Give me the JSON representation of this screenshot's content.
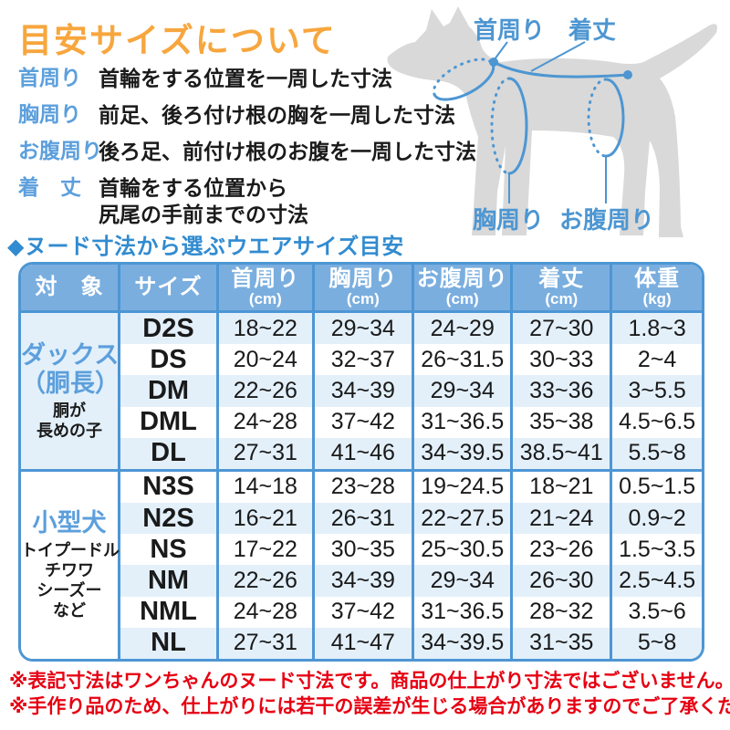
{
  "page": {
    "title": "目安サイズについて",
    "section_title": "◆ヌード寸法から選ぶウエアサイズ目安"
  },
  "definitions": [
    {
      "term": "首周り",
      "desc_lines": [
        "首輪をする位置を一周した寸法"
      ]
    },
    {
      "term": "胸周り",
      "desc_lines": [
        "前足、後ろ付け根の胸を一周した寸法"
      ]
    },
    {
      "term": "お腹周り",
      "desc_lines": [
        "後ろ足、前付け根のお腹を一周した寸法"
      ]
    },
    {
      "term": "着　丈",
      "desc_lines": [
        "首輪をする位置から",
        "尻尾の手前までの寸法"
      ]
    }
  ],
  "diagram": {
    "labels": {
      "neck": "首周り",
      "length": "着丈",
      "chest": "胸周り",
      "belly": "お腹周り"
    }
  },
  "table": {
    "headers": [
      {
        "label": "対　象",
        "unit": ""
      },
      {
        "label": "サイズ",
        "unit": ""
      },
      {
        "label": "首周り",
        "unit": "(cm)"
      },
      {
        "label": "胸周り",
        "unit": "(cm)"
      },
      {
        "label": "お腹周り",
        "unit": "(cm)"
      },
      {
        "label": "着丈",
        "unit": "(cm)"
      },
      {
        "label": "体重",
        "unit": "(kg)"
      }
    ],
    "groups": [
      {
        "name_lines": [
          "ダックス",
          "（胴長）"
        ],
        "note_lines": [
          "胴が",
          "長めの子"
        ],
        "rows": [
          {
            "size": "D2S",
            "neck": "18~22",
            "chest": "29~34",
            "belly": "24~29",
            "length": "27~30",
            "weight": "1.8~3"
          },
          {
            "size": "DS",
            "neck": "20~24",
            "chest": "32~37",
            "belly": "26~31.5",
            "length": "30~33",
            "weight": "2~4"
          },
          {
            "size": "DM",
            "neck": "22~26",
            "chest": "34~39",
            "belly": "29~34",
            "length": "33~36",
            "weight": "3~5.5"
          },
          {
            "size": "DML",
            "neck": "24~28",
            "chest": "37~42",
            "belly": "31~36.5",
            "length": "35~38",
            "weight": "4.5~6.5"
          },
          {
            "size": "DL",
            "neck": "27~31",
            "chest": "41~46",
            "belly": "34~39.5",
            "length": "38.5~41",
            "weight": "5.5~8"
          }
        ]
      },
      {
        "name_lines": [
          "小型犬"
        ],
        "note_lines": [
          "トイプードル",
          "チワワ",
          "シーズー",
          "など"
        ],
        "rows": [
          {
            "size": "N3S",
            "neck": "14~18",
            "chest": "23~28",
            "belly": "19~24.5",
            "length": "18~21",
            "weight": "0.5~1.5"
          },
          {
            "size": "N2S",
            "neck": "16~21",
            "chest": "26~31",
            "belly": "22~27.5",
            "length": "21~24",
            "weight": "0.9~2"
          },
          {
            "size": "NS",
            "neck": "17~22",
            "chest": "30~35",
            "belly": "25~30.5",
            "length": "23~26",
            "weight": "1.5~3.5"
          },
          {
            "size": "NM",
            "neck": "22~26",
            "chest": "34~39",
            "belly": "29~34",
            "length": "26~30",
            "weight": "2.5~4.5"
          },
          {
            "size": "NML",
            "neck": "24~28",
            "chest": "37~42",
            "belly": "31~36.5",
            "length": "28~32",
            "weight": "3.5~6"
          },
          {
            "size": "NL",
            "neck": "27~31",
            "chest": "41~47",
            "belly": "34~39.5",
            "length": "31~35",
            "weight": "5~8"
          }
        ]
      }
    ]
  },
  "notes": [
    "※表記寸法はワンちゃんのヌード寸法です。商品の仕上がり寸法ではございません。",
    "※手作り品のため、仕上がりには若干の誤差が生じる場合がありますのでご了承ください。"
  ],
  "colors": {
    "title_orange": "#F7A63E",
    "label_blue": "#5C9FDC",
    "section_blue": "#318BD0",
    "table_border_blue": "#4D96D4",
    "header_bg_blue": "#7AAEDF",
    "stripe_light_blue": "#E3F0FA",
    "note_red": "#E60012",
    "dog_silhouette_gray": "#D9D9D9"
  }
}
